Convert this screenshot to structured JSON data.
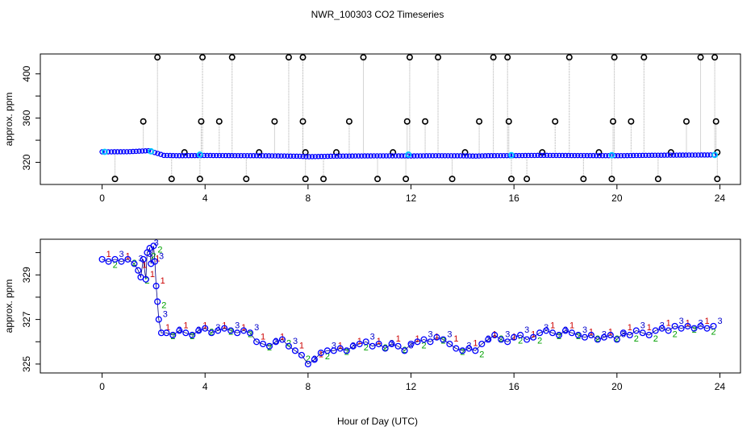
{
  "chart_data": [
    {
      "type": "scatter",
      "title": "NWR_100303  CO2 Timeseries",
      "xlabel": "",
      "ylabel": "approx. ppm",
      "xlim": [
        -2.4,
        24.8
      ],
      "ylim": [
        300,
        418
      ],
      "xticks": [
        "0",
        "4",
        "8",
        "12",
        "16",
        "20",
        "24"
      ],
      "xtick_values": [
        0,
        4,
        8,
        12,
        16,
        20,
        24
      ],
      "yticks": [
        "320",
        "360",
        "400"
      ],
      "ytick_values": [
        320,
        360,
        400
      ],
      "yticks_minor": [
        340,
        380
      ],
      "series_colors": {
        "raw_points": "#000000",
        "baseline": "#0000ff",
        "highlight": "#00c8ff",
        "alt": "#00a000",
        "flag": "#cc0000",
        "spike_line": "#aaaaaa"
      },
      "baseline": {
        "x": [
          0,
          1,
          1.8,
          2.1,
          2.4,
          3,
          4,
          5,
          6,
          7,
          7.7,
          8,
          9,
          10,
          11,
          12,
          13,
          14,
          14.5,
          15,
          16,
          17,
          18,
          19,
          20,
          21,
          22,
          23,
          23.8
        ],
        "y": [
          329.5,
          329.6,
          330.5,
          328.5,
          326.3,
          326,
          326.2,
          326.1,
          326,
          325.8,
          325.5,
          325.1,
          325.6,
          325.8,
          325.9,
          325.8,
          326,
          325.9,
          325.7,
          326,
          326.1,
          326.3,
          326.2,
          326.1,
          326,
          326.3,
          326.5,
          326.6,
          326.7
        ]
      },
      "highlights": {
        "x": [
          0.1,
          1.9,
          3.8,
          11.9,
          15.9,
          19.8,
          23.8
        ],
        "y": [
          329.5,
          330,
          327,
          327,
          326.5,
          326.5,
          326.7
        ]
      },
      "spikes_high": {
        "x": [
          2.15,
          3.9,
          5.05,
          7.25,
          7.8,
          10.15,
          11.95,
          13.05,
          15.2,
          15.75,
          18.15,
          19.9,
          21.05,
          23.25,
          23.8
        ],
        "y": 415
      },
      "spikes_mid": {
        "x": [
          1.6,
          3.85,
          4.55,
          6.7,
          7.8,
          9.6,
          11.85,
          12.55,
          14.65,
          15.8,
          17.6,
          19.85,
          20.55,
          22.7,
          23.85
        ],
        "y": 357
      },
      "spikes_low": {
        "x": [
          0.5,
          2.7,
          3.8,
          5.6,
          7.9,
          8.6,
          10.7,
          11.8,
          13.6,
          15.9,
          16.5,
          18.7,
          19.8,
          21.6,
          23.9
        ],
        "y": 305
      },
      "spikes_small": {
        "x": [
          3.2,
          6.1,
          7.9,
          9.1,
          11.3,
          14.1,
          17.1,
          19.3,
          22.1,
          23.9
        ],
        "y": 329
      }
    },
    {
      "type": "scatter",
      "title": "",
      "xlabel": "Hour of Day (UTC)",
      "ylabel": "approx. ppm",
      "xlim": [
        -2.4,
        24.8
      ],
      "ylim": [
        324.6,
        330.6
      ],
      "xticks": [
        "0",
        "4",
        "8",
        "12",
        "16",
        "20",
        "24"
      ],
      "xtick_values": [
        0,
        4,
        8,
        12,
        16,
        20,
        24
      ],
      "yticks": [
        "325",
        "327",
        "329"
      ],
      "ytick_values": [
        325,
        327,
        329
      ],
      "yticks_minor": [
        326,
        328,
        330
      ],
      "marker_labels": [
        "1",
        "2",
        "3"
      ],
      "series_colors": {
        "circles": "#0000ff",
        "labels_a": "#cc0000",
        "labels_b": "#00a000",
        "labels_c": "#0000cc",
        "ring": "#000080"
      },
      "series": {
        "x": [
          0,
          0.25,
          0.5,
          0.75,
          1,
          1.25,
          1.4,
          1.5,
          1.6,
          1.7,
          1.75,
          1.85,
          1.9,
          2,
          2.05,
          2.1,
          2.15,
          2.2,
          2.3,
          2.5,
          2.75,
          3,
          3.25,
          3.5,
          3.75,
          4,
          4.25,
          4.5,
          4.75,
          5,
          5.25,
          5.5,
          5.75,
          6,
          6.25,
          6.5,
          6.75,
          7,
          7.25,
          7.5,
          7.75,
          8,
          8.25,
          8.5,
          8.75,
          9,
          9.25,
          9.5,
          9.75,
          10,
          10.25,
          10.5,
          10.75,
          11,
          11.25,
          11.5,
          11.75,
          12,
          12.25,
          12.5,
          12.75,
          13,
          13.25,
          13.5,
          13.75,
          14,
          14.25,
          14.5,
          14.75,
          15,
          15.25,
          15.5,
          15.75,
          16,
          16.25,
          16.5,
          16.75,
          17,
          17.25,
          17.5,
          17.75,
          18,
          18.25,
          18.5,
          18.75,
          19,
          19.25,
          19.5,
          19.75,
          20,
          20.25,
          20.5,
          20.75,
          21,
          21.25,
          21.5,
          21.75,
          22,
          22.25,
          22.5,
          22.75,
          23,
          23.25,
          23.5,
          23.75
        ],
        "y": [
          329.7,
          329.6,
          329.7,
          329.6,
          329.7,
          329.5,
          329.2,
          328.9,
          329.7,
          328.8,
          330.0,
          330.2,
          329.5,
          330.3,
          329.6,
          328.5,
          327.8,
          327.0,
          326.4,
          326.4,
          326.3,
          326.5,
          326.4,
          326.3,
          326.5,
          326.6,
          326.4,
          326.5,
          326.6,
          326.5,
          326.4,
          326.5,
          326.4,
          326.0,
          325.9,
          325.8,
          326.0,
          326.1,
          325.8,
          325.6,
          325.4,
          325.0,
          325.2,
          325.5,
          325.6,
          325.6,
          325.7,
          325.6,
          325.8,
          325.9,
          326.0,
          325.8,
          325.9,
          325.7,
          325.9,
          325.8,
          325.6,
          325.9,
          326.0,
          326.1,
          326.0,
          326.2,
          326.1,
          325.9,
          325.7,
          325.6,
          325.7,
          325.6,
          325.9,
          326.1,
          326.3,
          326.1,
          326.0,
          326.2,
          326.3,
          326.1,
          326.2,
          326.4,
          326.5,
          326.4,
          326.3,
          326.5,
          326.4,
          326.3,
          326.2,
          326.3,
          326.1,
          326.2,
          326.3,
          326.1,
          326.4,
          326.3,
          326.5,
          326.4,
          326.3,
          326.5,
          326.6,
          326.5,
          326.7,
          326.6,
          326.7,
          326.6,
          326.7,
          326.6,
          326.7
        ]
      }
    }
  ]
}
